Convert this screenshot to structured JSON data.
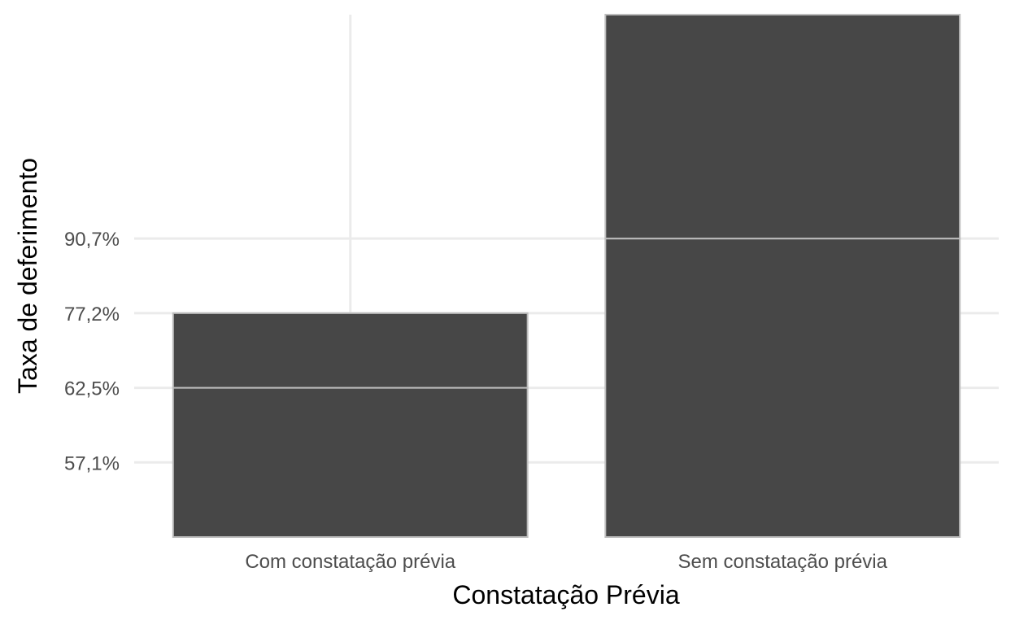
{
  "chart_data": {
    "type": "bar",
    "title": "",
    "xlabel": "Constatação Prévia",
    "ylabel": "Taxa de deferimento",
    "categories": [
      "Com constatação prévia",
      "Sem constatação prévia"
    ],
    "bar_top_ticks": [
      "77,2%",
      "100%"
    ],
    "y_ticks": [
      {
        "label": "57,1%",
        "level": 1
      },
      {
        "label": "62,5%",
        "level": 2
      },
      {
        "label": "77,2%",
        "level": 3
      },
      {
        "label": "90,7%",
        "level": 4
      }
    ],
    "ylim_levels": [
      0,
      7
    ],
    "bars": [
      {
        "category": "Com constatação prévia",
        "level": 3,
        "stack_segments": [
          {
            "from": 0,
            "to": 2
          },
          {
            "from": 2,
            "to": 3
          }
        ]
      },
      {
        "category": "Sem constatação prévia",
        "level": 7,
        "stack_segments": [
          {
            "from": 0,
            "to": 4
          },
          {
            "from": 4,
            "to": 7
          }
        ]
      }
    ],
    "grid": true,
    "legend": "none",
    "colors": {
      "bar_fill": "#474747",
      "bar_outline": "#bdbdbd",
      "grid": "#ebebeb",
      "tick_text": "#4d4d4d",
      "axis_title": "#000000"
    }
  }
}
